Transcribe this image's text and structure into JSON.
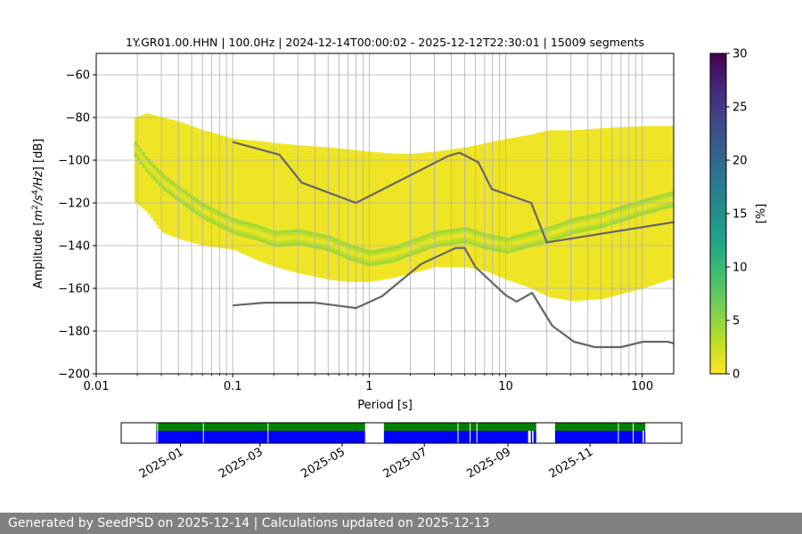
{
  "chart_data": [
    {
      "type": "heatmap",
      "title": "1Y.GR01.00.HHN | 100.0Hz | 2024-12-14T00:00:02 - 2025-12-12T22:30:01 | 15009 segments",
      "xlabel": "Period [s]",
      "ylabel_parts": [
        "Amplitude [",
        "m",
        "2",
        "/",
        "s",
        "4",
        "/",
        "Hz",
        "] [dB]"
      ],
      "x_scale": "log",
      "xlim": [
        0.01,
        170
      ],
      "ylim": [
        -200,
        -50
      ],
      "x_ticks": [
        0.01,
        0.1,
        1,
        10,
        100
      ],
      "x_tick_labels": [
        "0.01",
        "0.1",
        "1",
        "10",
        "100"
      ],
      "y_ticks": [
        -200,
        -180,
        -160,
        -140,
        -120,
        -100,
        -80,
        -60
      ],
      "y_tick_labels": [
        "−200",
        "−180",
        "−160",
        "−140",
        "−120",
        "−100",
        "−80",
        "−60"
      ],
      "grid": true,
      "colorbar": {
        "label": "[%]",
        "range": [
          0,
          30
        ],
        "ticks": [
          0,
          5,
          10,
          15,
          20,
          25,
          30
        ],
        "tick_labels": [
          "0",
          "5",
          "10",
          "15",
          "20",
          "25",
          "30"
        ],
        "colormap": "viridis"
      },
      "psd_envelope": {
        "period": [
          0.019,
          0.023,
          0.03,
          0.04,
          0.06,
          0.1,
          0.15,
          0.2,
          0.3,
          0.5,
          0.7,
          1.0,
          1.5,
          2.0,
          3.0,
          5.0,
          7.0,
          10.0,
          15.0,
          20.0,
          30.0,
          50.0,
          100.0,
          170.0
        ],
        "upper": [
          -80,
          -78,
          -80,
          -82,
          -86,
          -90,
          -91,
          -92,
          -93,
          -94,
          -95,
          -96,
          -97,
          -97,
          -96,
          -94,
          -92,
          -90,
          -88,
          -86,
          -86,
          -85,
          -84,
          -84
        ],
        "lower": [
          -120,
          -124,
          -134,
          -137,
          -140,
          -142,
          -147,
          -150,
          -153,
          -156,
          -157,
          -157,
          -155,
          -153,
          -150,
          -150,
          -152,
          -156,
          -160,
          -164,
          -166,
          -165,
          -160,
          -155
        ],
        "mode": [
          -95,
          -102,
          -110,
          -116,
          -124,
          -131,
          -134,
          -137,
          -136,
          -139,
          -143,
          -146,
          -144,
          -141,
          -137,
          -135,
          -138,
          -140,
          -137,
          -135,
          -131,
          -128,
          -122,
          -118
        ]
      },
      "noise_models": [
        {
          "name": "upper",
          "period": [
            0.1,
            0.22,
            0.32,
            0.8,
            3.8,
            4.6,
            6.3,
            7.9,
            15.4,
            20.0,
            170.0
          ],
          "db": [
            -91.5,
            -97.4,
            -110.5,
            -120.0,
            -98.0,
            -96.5,
            -101.0,
            -113.5,
            -120.0,
            -138.5,
            -129.0
          ]
        },
        {
          "name": "lower",
          "period": [
            0.1,
            0.17,
            0.4,
            0.8,
            1.24,
            2.4,
            4.3,
            5.0,
            6.0,
            10.0,
            12.0,
            15.6,
            21.9,
            31.6,
            45.0,
            70.0,
            101.0,
            154.0,
            170.0
          ],
          "db": [
            -168.0,
            -166.7,
            -166.7,
            -169.2,
            -163.7,
            -148.6,
            -141.1,
            -141.1,
            -150.0,
            -163.2,
            -166.2,
            -162.1,
            -177.5,
            -185.0,
            -187.5,
            -187.5,
            -185.0,
            -185.0,
            -185.7
          ]
        }
      ]
    },
    {
      "type": "timeline",
      "x_tick_labels": [
        "2025-01",
        "2025-03",
        "2025-05",
        "2025-07",
        "2025-09",
        "2025-11"
      ],
      "x_tick_dates": [
        "2025-01-01",
        "2025-03-01",
        "2025-05-01",
        "2025-07-01",
        "2025-09-01",
        "2025-11-01"
      ],
      "xlim": [
        "2024-11-18",
        "2026-01-08"
      ],
      "colors": {
        "green": "#008000",
        "blue": "#0000ff"
      },
      "green_segments": [
        [
          "2024-12-14",
          "2025-05-18"
        ],
        [
          "2025-06-01",
          "2025-09-22"
        ],
        [
          "2025-10-06",
          "2025-12-12"
        ]
      ],
      "blue_segments": [
        [
          "2024-12-14",
          "2025-05-18"
        ],
        [
          "2025-06-01",
          "2025-09-16"
        ],
        [
          "2025-09-18",
          "2025-09-19"
        ],
        [
          "2025-09-20",
          "2025-09-22"
        ],
        [
          "2025-10-06",
          "2025-12-10"
        ],
        [
          "2025-12-11",
          "2025-12-12"
        ]
      ],
      "gaps": [
        "2024-12-15",
        "2025-01-18",
        "2025-03-07",
        "2025-07-26",
        "2025-08-04",
        "2025-08-09",
        "2025-11-22",
        "2025-12-03"
      ]
    }
  ],
  "footer": "Generated by SeedPSD on 2025-12-14 | Calculations updated on 2025-12-13"
}
